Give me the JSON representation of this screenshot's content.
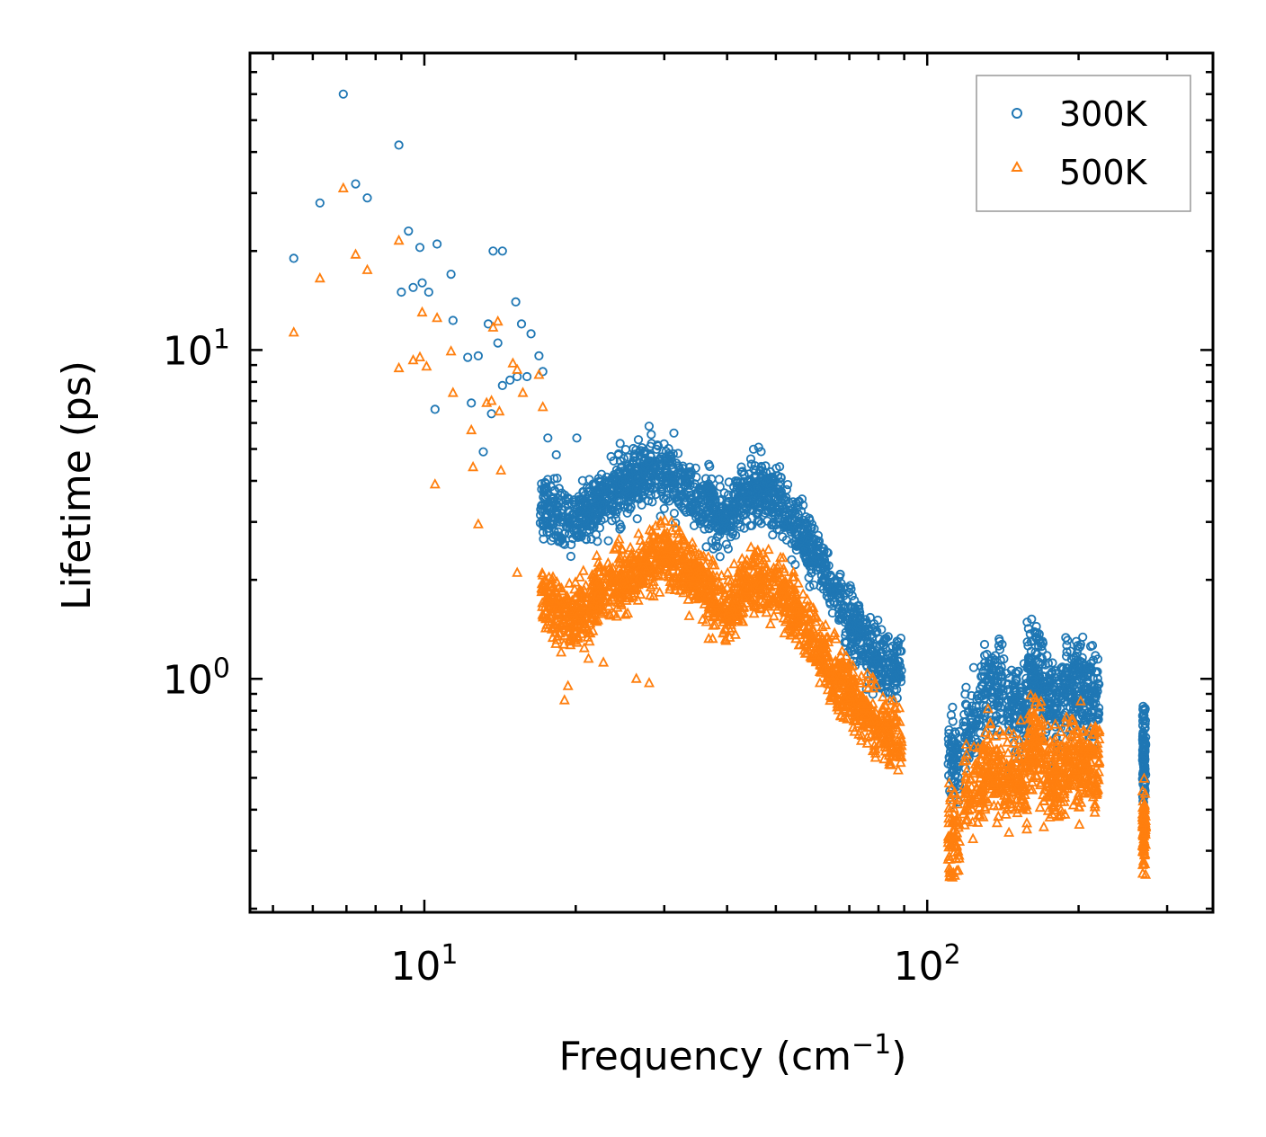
{
  "chart_data": {
    "type": "scatter",
    "xscale": "log",
    "yscale": "log",
    "xlim": [
      4.5,
      370
    ],
    "ylim": [
      0.195,
      80
    ],
    "xlabel": "Frequency (cm",
    "xlabel_sup": "−1",
    "xlabel_end": ")",
    "ylabel": "Lifetime (ps)",
    "x_ticks": [
      {
        "value": 10,
        "base": "10",
        "exp": "1"
      },
      {
        "value": 100,
        "base": "10",
        "exp": "2"
      }
    ],
    "y_ticks": [
      {
        "value": 1,
        "base": "10",
        "exp": "0"
      },
      {
        "value": 10,
        "base": "10",
        "exp": "1"
      }
    ],
    "legend_position": "top-right",
    "series": [
      {
        "name": "300K",
        "marker": "circle",
        "color": "#1f77b4",
        "points": [
          [
            5.5,
            19
          ],
          [
            6.2,
            28
          ],
          [
            6.9,
            60
          ],
          [
            7.3,
            32
          ],
          [
            7.7,
            29
          ],
          [
            8.9,
            42
          ],
          [
            9.3,
            23
          ],
          [
            9.8,
            20.5
          ],
          [
            10.6,
            21
          ],
          [
            9.0,
            15
          ],
          [
            9.5,
            15.5
          ],
          [
            9.9,
            16
          ],
          [
            10.2,
            15
          ],
          [
            11.3,
            17
          ],
          [
            12.2,
            9.5
          ],
          [
            12.8,
            9.6
          ],
          [
            13.4,
            12
          ],
          [
            14.0,
            10.5
          ],
          [
            15.2,
            14
          ],
          [
            15.6,
            12
          ],
          [
            16.3,
            11.2
          ],
          [
            16.9,
            9.6
          ],
          [
            11.4,
            12.3
          ],
          [
            10.5,
            6.6
          ],
          [
            12.4,
            6.9
          ],
          [
            13.1,
            4.9
          ],
          [
            13.6,
            6.4
          ],
          [
            14.3,
            7.8
          ],
          [
            14.8,
            8.1
          ],
          [
            15.3,
            8.3
          ],
          [
            16.0,
            8.3
          ],
          [
            17.2,
            8.6
          ],
          [
            17.6,
            5.4
          ],
          [
            18.3,
            4.8
          ],
          [
            20.1,
            5.4
          ],
          [
            13.7,
            20
          ],
          [
            14.3,
            20
          ]
        ]
      },
      {
        "name": "500K",
        "marker": "triangle",
        "color": "#ff7f0e",
        "points": [
          [
            5.5,
            11.3
          ],
          [
            6.2,
            16.5
          ],
          [
            6.9,
            31
          ],
          [
            7.3,
            19.5
          ],
          [
            7.7,
            17.5
          ],
          [
            8.9,
            21.5
          ],
          [
            8.9,
            8.8
          ],
          [
            9.5,
            9.3
          ],
          [
            9.8,
            9.5
          ],
          [
            10.1,
            8.9
          ],
          [
            10.6,
            12.5
          ],
          [
            9.9,
            13
          ],
          [
            11.3,
            9.9
          ],
          [
            11.4,
            7.4
          ],
          [
            12.4,
            5.7
          ],
          [
            12.5,
            4.4
          ],
          [
            13.3,
            6.9
          ],
          [
            13.6,
            7.0
          ],
          [
            14.2,
            4.3
          ],
          [
            14.1,
            6.5
          ],
          [
            15.0,
            9.1
          ],
          [
            15.3,
            8.7
          ],
          [
            15.7,
            7.4
          ],
          [
            16.9,
            8.4
          ],
          [
            17.2,
            6.7
          ],
          [
            14.0,
            12.2
          ],
          [
            13.7,
            11.7
          ],
          [
            10.5,
            3.9
          ],
          [
            12.8,
            2.95
          ],
          [
            15.3,
            2.1
          ],
          [
            17.4,
            2.0
          ],
          [
            19.0,
            0.86
          ],
          [
            19.3,
            0.95
          ],
          [
            21.2,
            1.15
          ],
          [
            22.7,
            1.12
          ],
          [
            28.0,
            0.97
          ],
          [
            26.4,
            1.0
          ]
        ]
      }
    ]
  }
}
